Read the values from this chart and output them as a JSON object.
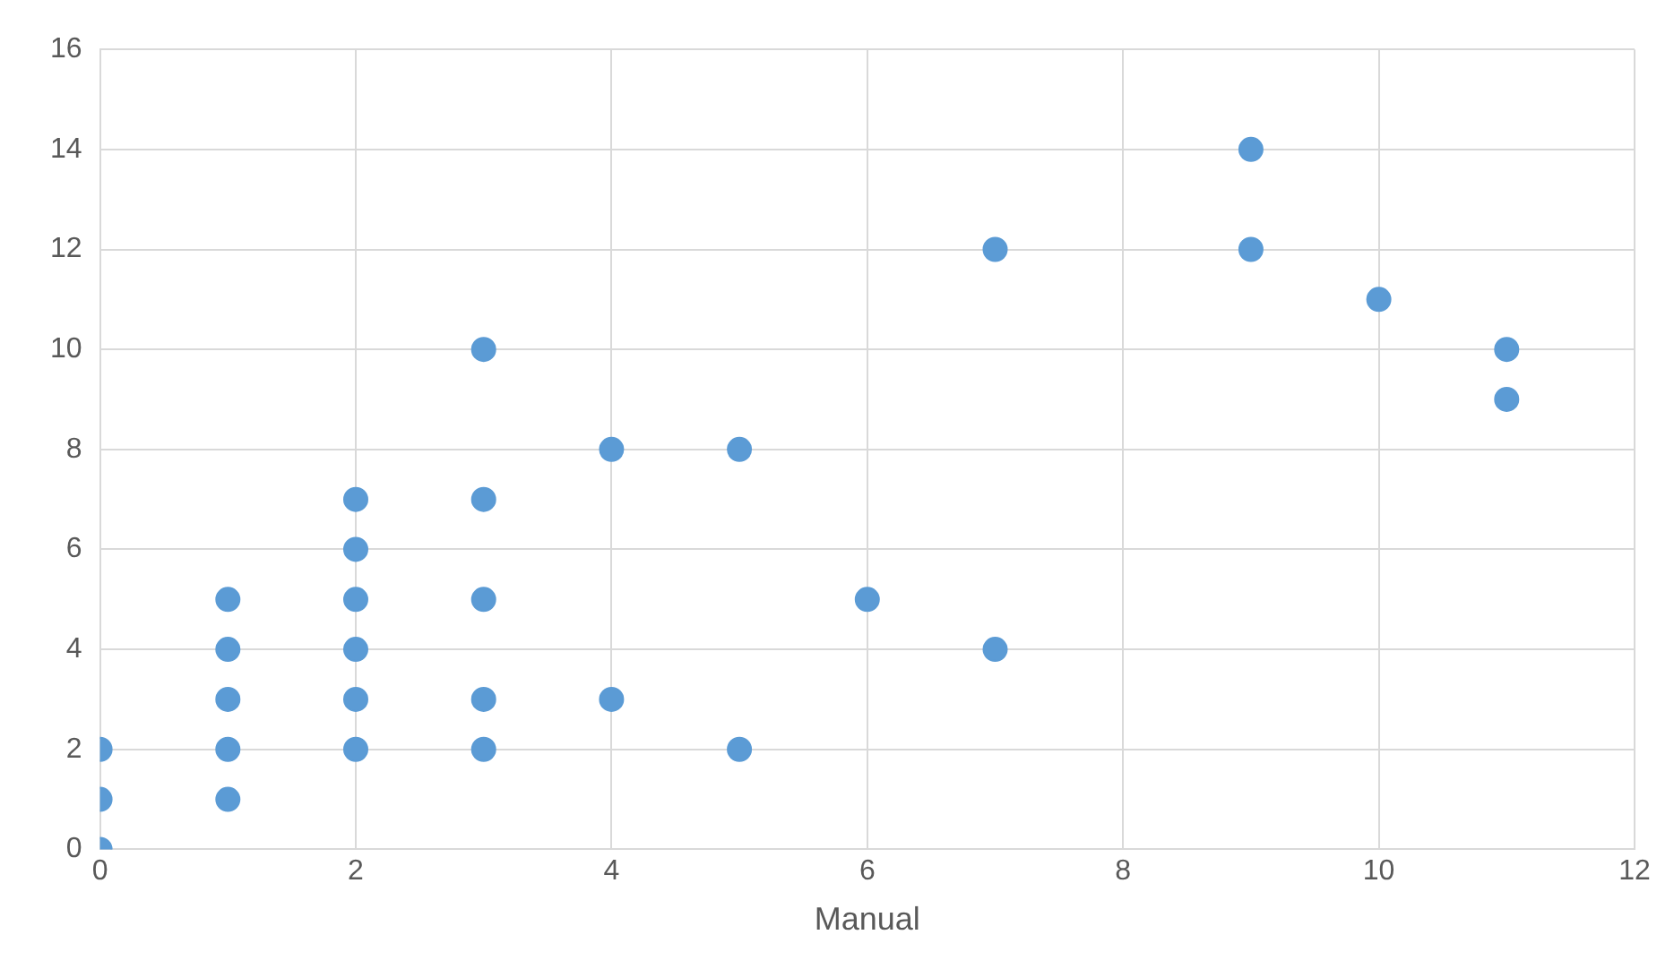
{
  "chart_data": {
    "type": "scatter",
    "xlabel": "Manual",
    "marker": "circle",
    "grid": true,
    "legend": false,
    "xlim": [
      0,
      12
    ],
    "xticks": [
      0,
      2,
      4,
      6,
      8,
      10,
      12
    ],
    "ylim": [
      0,
      16
    ],
    "yticks": [
      0,
      2,
      4,
      6,
      8,
      10,
      12,
      14,
      16
    ],
    "series": [
      {
        "color": "#5b9bd5",
        "x": [
          0,
          0,
          0,
          1,
          1,
          1,
          1,
          1,
          2,
          2,
          2,
          2,
          2,
          2,
          3,
          3,
          3,
          3,
          3,
          4,
          4,
          5,
          5,
          6,
          7,
          7,
          9,
          9,
          10,
          11,
          11
        ],
        "values": [
          0,
          1,
          2,
          1,
          2,
          3,
          4,
          5,
          2,
          3,
          4,
          5,
          6,
          7,
          2,
          3,
          5,
          7,
          10,
          3,
          8,
          2,
          8,
          5,
          4,
          12,
          12,
          14,
          11,
          9,
          10
        ]
      }
    ]
  }
}
